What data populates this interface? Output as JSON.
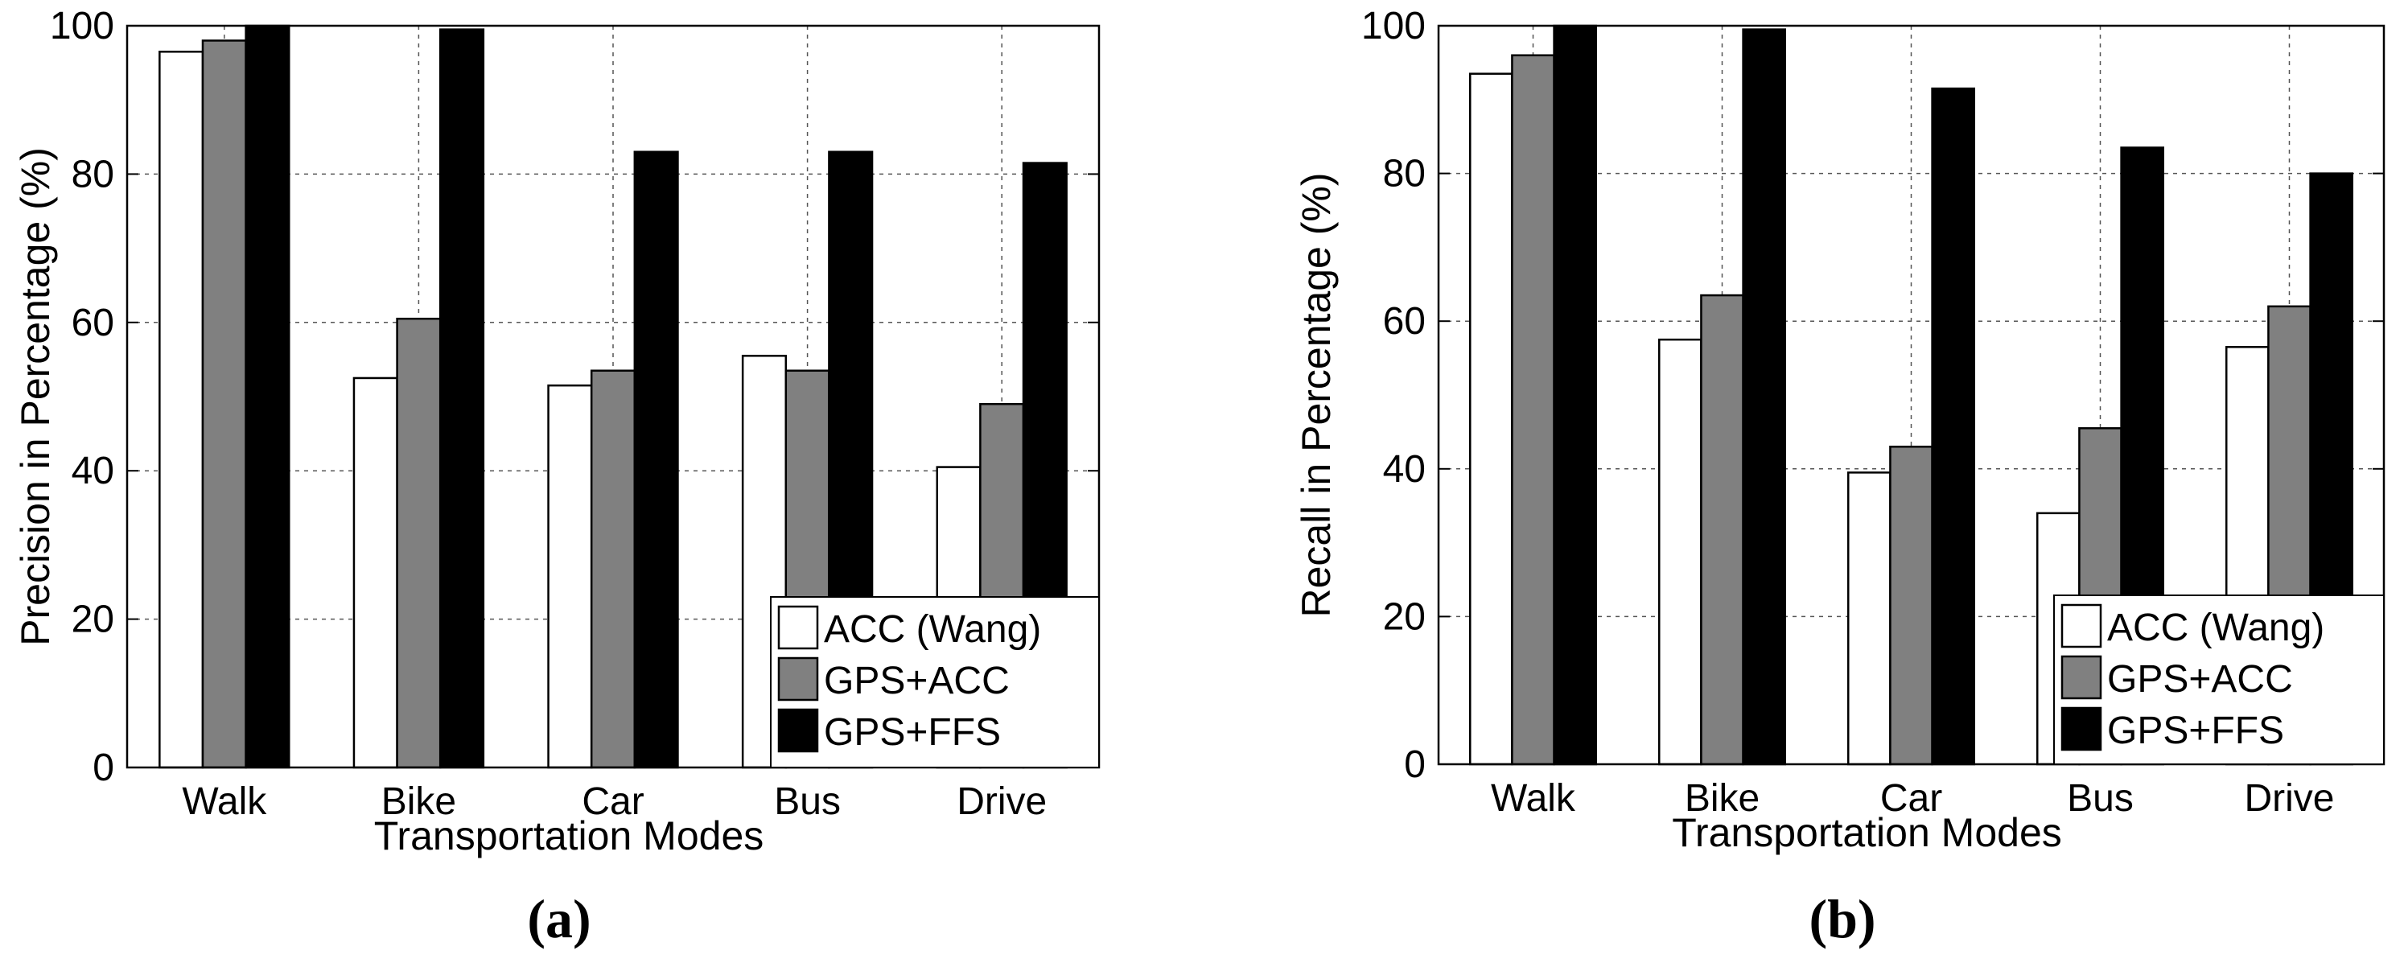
{
  "colors": {
    "acc_wang": "#ffffff",
    "gps_acc": "#808080",
    "gps_ffs": "#000000"
  },
  "chart_data": [
    {
      "type": "bar",
      "panel_caption": "(a)",
      "xlabel": "Transportation Modes",
      "ylabel": "Precision in Percentage (%)",
      "ylim": [
        0,
        100
      ],
      "yticks": [
        "0",
        "20",
        "40",
        "60",
        "80",
        "100"
      ],
      "grid": true,
      "legend_position": "bottom-right",
      "categories": [
        "Walk",
        "Bike",
        "Car",
        "Bus",
        "Drive"
      ],
      "series": [
        {
          "name": "ACC (Wang)",
          "values": [
            96.5,
            52.5,
            51.5,
            55.5,
            40.5
          ]
        },
        {
          "name": "GPS+ACC",
          "values": [
            98,
            60.5,
            53.5,
            53.5,
            49
          ]
        },
        {
          "name": "GPS+FFS",
          "values": [
            100,
            99.5,
            83,
            83,
            81.5
          ]
        }
      ]
    },
    {
      "type": "bar",
      "panel_caption": "(b)",
      "xlabel": "Transportation Modes",
      "ylabel": "Recall in Percentage (%)",
      "ylim": [
        0,
        100
      ],
      "yticks": [
        "0",
        "20",
        "40",
        "60",
        "80",
        "100"
      ],
      "grid": true,
      "legend_position": "bottom-right",
      "categories": [
        "Walk",
        "Bike",
        "Car",
        "Bus",
        "Drive"
      ],
      "series": [
        {
          "name": "ACC (Wang)",
          "values": [
            93.5,
            57.5,
            39.5,
            34,
            56.5
          ]
        },
        {
          "name": "GPS+ACC",
          "values": [
            96,
            63.5,
            43,
            45.5,
            62
          ]
        },
        {
          "name": "GPS+FFS",
          "values": [
            100,
            99.5,
            91.5,
            83.5,
            80
          ]
        }
      ]
    }
  ]
}
